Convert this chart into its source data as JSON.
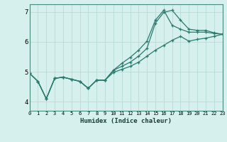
{
  "xlabel": "Humidex (Indice chaleur)",
  "bg_color": "#d6f0ee",
  "grid_color": "#b8dbd8",
  "line_color": "#2a7a6e",
  "xlim": [
    0,
    23
  ],
  "ylim": [
    3.7,
    7.25
  ],
  "yticks": [
    4,
    5,
    6,
    7
  ],
  "xticks": [
    0,
    1,
    2,
    3,
    4,
    5,
    6,
    7,
    8,
    9,
    10,
    11,
    12,
    13,
    14,
    15,
    16,
    17,
    18,
    19,
    20,
    21,
    22,
    23
  ],
  "line1_x": [
    0,
    1,
    2,
    3,
    4,
    5,
    6,
    7,
    8,
    9,
    10,
    11,
    12,
    13,
    14,
    15,
    16,
    17,
    18,
    19,
    20,
    21,
    22,
    23
  ],
  "line1_y": [
    4.95,
    4.68,
    4.1,
    4.78,
    4.82,
    4.75,
    4.68,
    4.45,
    4.72,
    4.72,
    5.05,
    5.28,
    5.48,
    5.72,
    6.02,
    6.72,
    7.05,
    6.55,
    6.42,
    6.32,
    6.32,
    6.32,
    6.28,
    6.25
  ],
  "line2_x": [
    0,
    1,
    2,
    3,
    4,
    5,
    6,
    7,
    8,
    9,
    10,
    11,
    12,
    13,
    14,
    15,
    16,
    17,
    18,
    19,
    20,
    21,
    22,
    23
  ],
  "line2_y": [
    4.95,
    4.68,
    4.1,
    4.78,
    4.82,
    4.75,
    4.68,
    4.45,
    4.72,
    4.72,
    5.05,
    5.18,
    5.32,
    5.52,
    5.78,
    6.62,
    6.98,
    7.05,
    6.72,
    6.42,
    6.38,
    6.38,
    6.3,
    6.25
  ],
  "line3_x": [
    0,
    1,
    2,
    3,
    4,
    5,
    6,
    7,
    8,
    9,
    10,
    11,
    12,
    13,
    14,
    15,
    16,
    17,
    18,
    19,
    20,
    21,
    22,
    23
  ],
  "line3_y": [
    4.95,
    4.68,
    4.1,
    4.78,
    4.82,
    4.75,
    4.68,
    4.45,
    4.72,
    4.72,
    4.98,
    5.08,
    5.18,
    5.32,
    5.52,
    5.72,
    5.88,
    6.05,
    6.18,
    6.02,
    6.08,
    6.12,
    6.18,
    6.25
  ]
}
